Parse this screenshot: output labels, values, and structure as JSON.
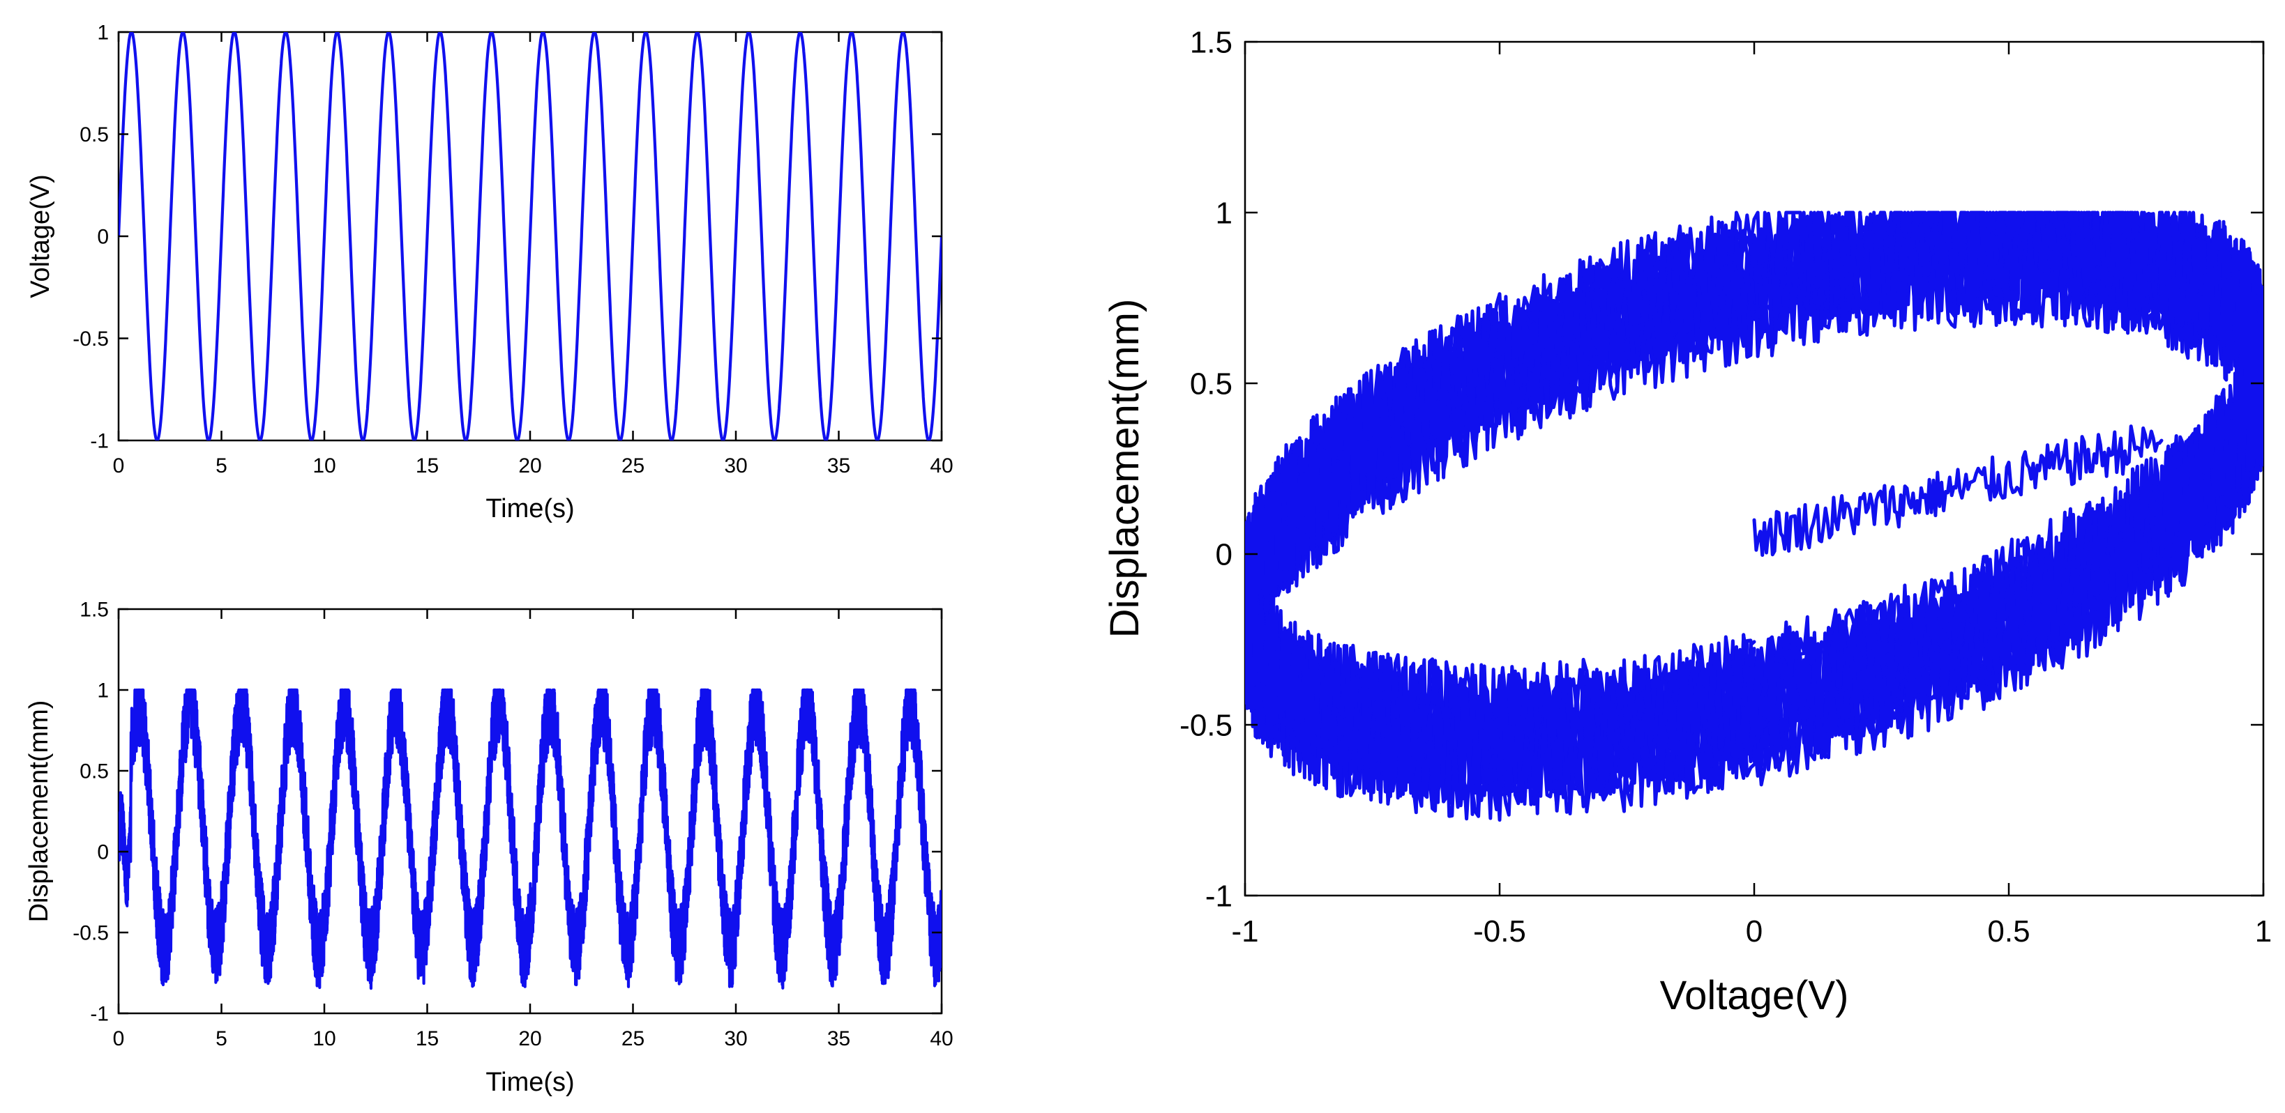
{
  "colors": {
    "series": "#1010ee",
    "axis": "#000000",
    "background": "#ffffff"
  },
  "chart_data": [
    {
      "id": "voltage-time",
      "type": "line",
      "xlabel": "Time(s)",
      "ylabel": "Voltage(V)",
      "xlim": [
        0,
        40
      ],
      "ylim": [
        -1,
        1
      ],
      "xticks": [
        0,
        5,
        10,
        15,
        20,
        25,
        30,
        35,
        40
      ],
      "yticks": [
        -1,
        -0.5,
        0,
        0.5,
        1
      ],
      "xtick_labels": [
        "0",
        "5",
        "10",
        "15",
        "20",
        "25",
        "30",
        "35",
        "40"
      ],
      "ytick_labels": [
        "-1",
        "-0.5",
        "0",
        "0.5",
        "1"
      ],
      "grid": false,
      "series": [
        {
          "function": "sine",
          "amplitude": 1,
          "frequency_hz": 0.4,
          "phase": 0,
          "x_range": [
            0,
            40
          ],
          "color": "#1010ee"
        }
      ]
    },
    {
      "id": "displacement-time",
      "type": "line",
      "xlabel": "Time(s)",
      "ylabel": "Displacement(mm)",
      "xlim": [
        0,
        40
      ],
      "ylim": [
        -1,
        1.5
      ],
      "xticks": [
        0,
        5,
        10,
        15,
        20,
        25,
        30,
        35,
        40
      ],
      "yticks": [
        -1,
        -0.5,
        0,
        0.5,
        1,
        1.5
      ],
      "xtick_labels": [
        "0",
        "5",
        "10",
        "15",
        "20",
        "25",
        "30",
        "35",
        "40"
      ],
      "ytick_labels": [
        "-1",
        "-0.5",
        "0",
        "0.5",
        "1",
        "1.5"
      ],
      "grid": false,
      "series": [
        {
          "function": "hysteretic-sine-with-noise",
          "amplitude": 0.75,
          "offset": 0.15,
          "frequency_hz": 0.4,
          "phase_lag_rad": 0.9,
          "noise_amplitude": 0.25,
          "peak_max": 1.0,
          "trough_min": -0.98,
          "x_range": [
            0,
            40
          ],
          "color": "#1010ee"
        }
      ]
    },
    {
      "id": "displacement-voltage",
      "type": "line",
      "xlabel": "Voltage(V)",
      "ylabel": "Displacement(mm)",
      "xlim": [
        -1,
        1
      ],
      "ylim": [
        -1,
        1.5
      ],
      "xticks": [
        -1,
        -0.5,
        0,
        0.5,
        1
      ],
      "yticks": [
        -1,
        -0.5,
        0,
        0.5,
        1,
        1.5
      ],
      "xtick_labels": [
        "-1",
        "-0.5",
        "0",
        "0.5",
        "1"
      ],
      "ytick_labels": [
        "-1",
        "-0.5",
        "0",
        "0.5",
        "1",
        "1.5"
      ],
      "grid": false,
      "series": [
        {
          "function": "hysteresis-loop",
          "start_point": [
            0,
            0
          ],
          "upper_branch_max": 1.0,
          "lower_branch_min": -1.0,
          "noise_amplitude": 0.25,
          "color": "#1010ee"
        }
      ]
    }
  ]
}
